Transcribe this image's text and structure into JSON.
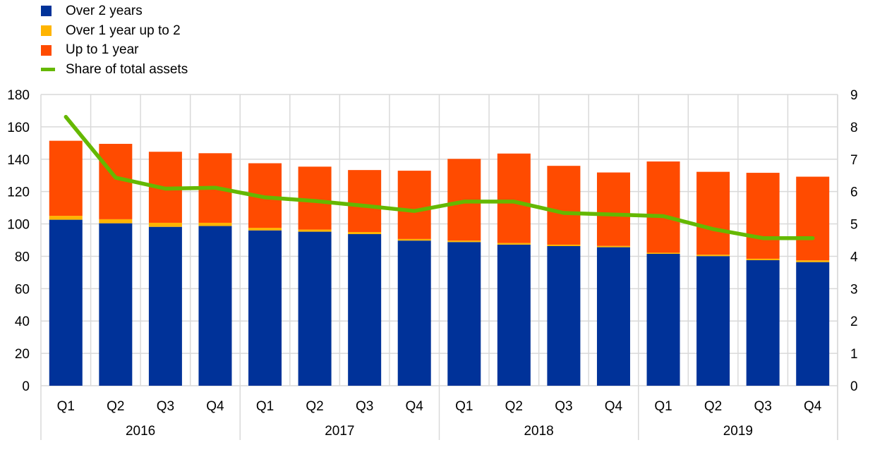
{
  "chart_data": {
    "type": "bar",
    "stacked": true,
    "title": "",
    "xlabel": "",
    "ylabel": "",
    "ylim": [
      0,
      180
    ],
    "y2lim": [
      0,
      9
    ],
    "yticks": [
      "0",
      "20",
      "40",
      "60",
      "80",
      "100",
      "120",
      "140",
      "160",
      "180"
    ],
    "y2ticks": [
      "0",
      "1",
      "2",
      "3",
      "4",
      "5",
      "6",
      "7",
      "8",
      "9"
    ],
    "grid": true,
    "legend_position": "top-left",
    "years": [
      "2016",
      "2017",
      "2018",
      "2019"
    ],
    "quarters": [
      "Q1",
      "Q2",
      "Q3",
      "Q4"
    ],
    "categories": [
      "2016 Q1",
      "2016 Q2",
      "2016 Q3",
      "2016 Q4",
      "2017 Q1",
      "2017 Q2",
      "2017 Q3",
      "2017 Q4",
      "2018 Q1",
      "2018 Q2",
      "2018 Q3",
      "2018 Q4",
      "2019 Q1",
      "2019 Q2",
      "2019 Q3",
      "2019 Q4"
    ],
    "series": [
      {
        "name": "Over 2 years",
        "type": "bar",
        "axis": "left",
        "color": "#003299",
        "values": [
          102.6,
          100.4,
          98.2,
          98.7,
          96.0,
          95.2,
          93.7,
          89.7,
          88.8,
          87.2,
          86.3,
          85.6,
          81.5,
          80.1,
          77.6,
          76.4
        ]
      },
      {
        "name": "Over 1 year up to 2",
        "type": "bar",
        "axis": "left",
        "color": "#FFB400",
        "values": [
          2.4,
          2.5,
          2.5,
          2.0,
          1.6,
          1.3,
          1.3,
          1.0,
          0.9,
          1.0,
          0.9,
          0.8,
          0.7,
          0.9,
          0.9,
          1.1
        ]
      },
      {
        "name": "Up to 1 year",
        "type": "bar",
        "axis": "left",
        "color": "#FF4B00",
        "values": [
          46.4,
          46.6,
          43.9,
          43.0,
          39.9,
          38.9,
          38.3,
          42.2,
          50.5,
          55.3,
          48.7,
          45.4,
          56.4,
          51.2,
          53.1,
          51.7
        ]
      },
      {
        "name": "Share of total assets",
        "type": "line",
        "axis": "right",
        "color": "#65B800",
        "values": [
          8.31,
          6.43,
          6.09,
          6.12,
          5.82,
          5.71,
          5.56,
          5.4,
          5.69,
          5.69,
          5.34,
          5.29,
          5.24,
          4.84,
          4.56,
          4.56
        ]
      }
    ]
  }
}
